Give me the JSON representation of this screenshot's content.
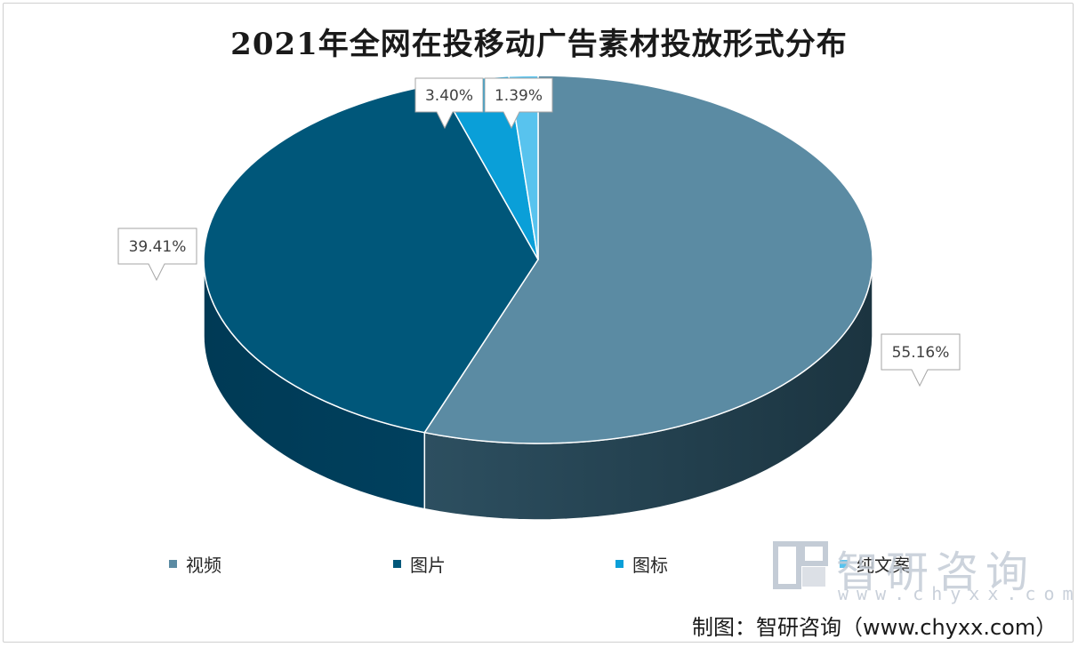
{
  "chart_data": {
    "type": "pie",
    "title": "2021年全网在投移动广告素材投放形式分布",
    "categories": [
      "视频",
      "图片",
      "图标",
      "纯文案"
    ],
    "values": [
      55.16,
      39.41,
      3.4,
      1.39
    ],
    "data_labels": [
      "55.16%",
      "39.41%",
      "3.40%",
      "1.39%"
    ],
    "colors": [
      "#5b8ba3",
      "#00577a",
      "#0a9fd8",
      "#58c3ee"
    ],
    "legend_position": "bottom",
    "style": "3d"
  },
  "watermark": {
    "name": "智研咨询",
    "url": "www.chyxx.com"
  },
  "credit": "制图：智研咨询（www.chyxx.com）"
}
